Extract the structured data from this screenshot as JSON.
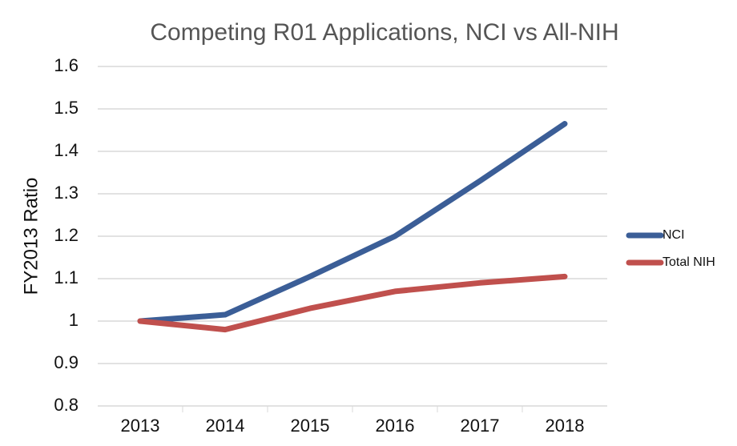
{
  "chart_data": {
    "type": "line",
    "title": "Competing R01 Applications, NCI vs All-NIH",
    "ylabel": "FY2013 Ratio",
    "categories": [
      "2013",
      "2014",
      "2015",
      "2016",
      "2017",
      "2018"
    ],
    "series": [
      {
        "name": "NCI",
        "color": "#3b5e97",
        "values": [
          1.0,
          1.015,
          1.105,
          1.2,
          1.33,
          1.465
        ]
      },
      {
        "name": "Total NIH",
        "color": "#c0504d",
        "values": [
          1.0,
          0.98,
          1.03,
          1.07,
          1.09,
          1.105
        ]
      }
    ],
    "ylim": [
      0.8,
      1.6
    ],
    "yticks": [
      0.8,
      0.9,
      1,
      1.1,
      1.2,
      1.3,
      1.4,
      1.5,
      1.6
    ],
    "grid": true,
    "legend": "right"
  }
}
